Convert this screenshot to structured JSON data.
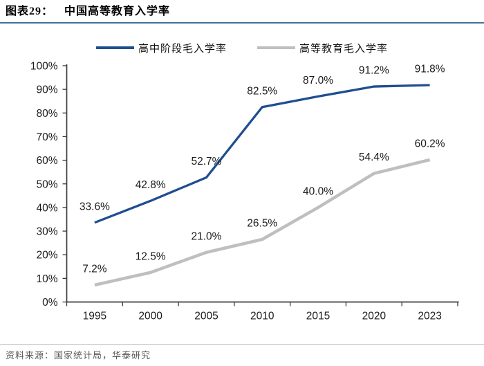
{
  "header": {
    "label": "图表29：",
    "title": "中国高等教育入学率"
  },
  "footer": {
    "source": "资料来源：国家统计局，华泰研究"
  },
  "chart_data": {
    "type": "line",
    "title": "中国高等教育入学率",
    "categories": [
      "1995",
      "2000",
      "2005",
      "2010",
      "2015",
      "2020",
      "2023"
    ],
    "series": [
      {
        "name": "高中阶段毛入学率",
        "color": "#1f4e8f",
        "values": [
          33.6,
          42.8,
          52.7,
          82.5,
          87.0,
          91.2,
          91.8
        ],
        "labels": [
          "33.6%",
          "42.8%",
          "52.7%",
          "82.5%",
          "87.0%",
          "91.2%",
          "91.8%"
        ]
      },
      {
        "name": "高等教育毛入学率",
        "color": "#bfbfbf",
        "values": [
          7.2,
          12.5,
          21.0,
          26.5,
          40.0,
          54.4,
          60.2
        ],
        "labels": [
          "7.2%",
          "12.5%",
          "21.0%",
          "26.5%",
          "40.0%",
          "54.4%",
          "60.2%"
        ]
      }
    ],
    "xlabel": "",
    "ylabel": "",
    "ylim": [
      0,
      100
    ],
    "yticks": [
      {
        "value": 0,
        "label": "0%"
      },
      {
        "value": 10,
        "label": "10%"
      },
      {
        "value": 20,
        "label": "20%"
      },
      {
        "value": 30,
        "label": "30%"
      },
      {
        "value": 40,
        "label": "40%"
      },
      {
        "value": 50,
        "label": "50%"
      },
      {
        "value": 60,
        "label": "60%"
      },
      {
        "value": 70,
        "label": "70%"
      },
      {
        "value": 80,
        "label": "80%"
      },
      {
        "value": 90,
        "label": "90%"
      },
      {
        "value": 100,
        "label": "100%"
      }
    ],
    "grid": false,
    "legend_position": "top",
    "data_labels": true
  },
  "colors": {
    "accent_rule": "#41719c",
    "axis": "#3a3a3a",
    "label_text": "#1a1a1a",
    "source_text": "#595959",
    "footer_rule": "#bdbdbd"
  }
}
